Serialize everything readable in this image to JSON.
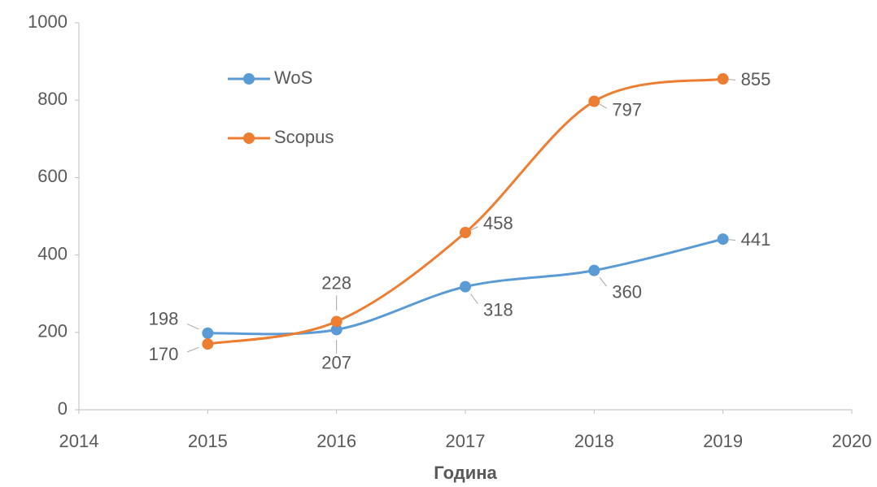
{
  "chart_data": {
    "type": "line",
    "x": [
      2015,
      2016,
      2017,
      2018,
      2019
    ],
    "series": [
      {
        "name": "WoS",
        "color": "#5b9bd5",
        "values": [
          198,
          207,
          318,
          360,
          441
        ]
      },
      {
        "name": "Scopus",
        "color": "#ed7d31",
        "values": [
          170,
          228,
          458,
          797,
          855
        ]
      }
    ],
    "x_label": "Година",
    "xlim": [
      2014,
      2020
    ],
    "xticks": [
      2014,
      2015,
      2016,
      2017,
      2018,
      2019,
      2020
    ],
    "ylim": [
      0,
      1000
    ],
    "yticks": [
      0,
      200,
      400,
      600,
      800,
      1000
    ],
    "grid": false,
    "smooth": true,
    "legend": "upper left"
  }
}
